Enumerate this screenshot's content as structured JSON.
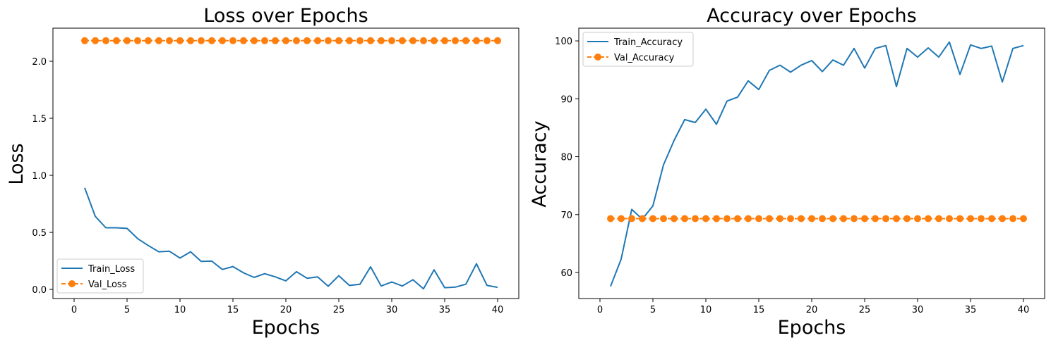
{
  "colors": {
    "train": "#1f77b4",
    "val": "#ff7f0e",
    "axis": "#000000"
  },
  "chart_data": [
    {
      "type": "line",
      "title": "Loss over Epochs",
      "xlabel": "Epochs",
      "ylabel": "Loss",
      "xlim": [
        -2,
        42
      ],
      "ylim": [
        -0.08,
        2.29
      ],
      "xticks": [
        0,
        5,
        10,
        15,
        20,
        25,
        30,
        35,
        40
      ],
      "xtick_labels": [
        "0",
        "5",
        "10",
        "15",
        "20",
        "25",
        "30",
        "35",
        "40"
      ],
      "yticks": [
        0,
        0.5,
        1,
        1.5,
        2
      ],
      "ytick_labels": [
        "0.0",
        "0.5",
        "1.0",
        "1.5",
        "2.0"
      ],
      "grid": false,
      "legend_position": "lower-left",
      "x": [
        1,
        2,
        3,
        4,
        5,
        6,
        7,
        8,
        9,
        10,
        11,
        12,
        13,
        14,
        15,
        16,
        17,
        18,
        19,
        20,
        21,
        22,
        23,
        24,
        25,
        26,
        27,
        28,
        29,
        30,
        31,
        32,
        33,
        34,
        35,
        36,
        37,
        38,
        39,
        40
      ],
      "series": [
        {
          "name": "Train_Loss",
          "style": "solid",
          "values": [
            0.89,
            0.64,
            0.54,
            0.54,
            0.535,
            0.445,
            0.385,
            0.33,
            0.335,
            0.275,
            0.33,
            0.245,
            0.248,
            0.175,
            0.2,
            0.145,
            0.105,
            0.138,
            0.11,
            0.075,
            0.155,
            0.098,
            0.11,
            0.028,
            0.12,
            0.035,
            0.045,
            0.198,
            0.03,
            0.065,
            0.03,
            0.085,
            0.005,
            0.172,
            0.015,
            0.02,
            0.045,
            0.225,
            0.035,
            0.018
          ]
        },
        {
          "name": "Val_Loss",
          "style": "dashed-circle",
          "values": [
            2.18,
            2.18,
            2.18,
            2.18,
            2.18,
            2.18,
            2.18,
            2.18,
            2.18,
            2.18,
            2.18,
            2.18,
            2.18,
            2.18,
            2.18,
            2.18,
            2.18,
            2.18,
            2.18,
            2.18,
            2.18,
            2.18,
            2.18,
            2.18,
            2.18,
            2.18,
            2.18,
            2.18,
            2.18,
            2.18,
            2.18,
            2.18,
            2.18,
            2.18,
            2.18,
            2.18,
            2.18,
            2.18,
            2.18,
            2.18
          ]
        }
      ]
    },
    {
      "type": "line",
      "title": "Accuracy over Epochs",
      "xlabel": "Epochs",
      "ylabel": "Accuracy",
      "xlim": [
        -2,
        42
      ],
      "ylim": [
        55.5,
        102.2
      ],
      "xticks": [
        0,
        5,
        10,
        15,
        20,
        25,
        30,
        35,
        40
      ],
      "xtick_labels": [
        "0",
        "5",
        "10",
        "15",
        "20",
        "25",
        "30",
        "35",
        "40"
      ],
      "yticks": [
        60,
        70,
        80,
        90,
        100
      ],
      "ytick_labels": [
        "60",
        "70",
        "80",
        "90",
        "100"
      ],
      "grid": false,
      "legend_position": "upper-left",
      "x": [
        1,
        2,
        3,
        4,
        5,
        6,
        7,
        8,
        9,
        10,
        11,
        12,
        13,
        14,
        15,
        16,
        17,
        18,
        19,
        20,
        21,
        22,
        23,
        24,
        25,
        26,
        27,
        28,
        29,
        30,
        31,
        32,
        33,
        34,
        35,
        36,
        37,
        38,
        39,
        40
      ],
      "series": [
        {
          "name": "Train_Accuracy",
          "style": "solid",
          "values": [
            57.6,
            62.3,
            70.9,
            69.2,
            71.5,
            78.6,
            82.8,
            86.4,
            85.9,
            88.2,
            85.6,
            89.6,
            90.3,
            93.1,
            91.6,
            94.9,
            95.8,
            94.6,
            95.8,
            96.6,
            94.7,
            96.7,
            95.8,
            98.7,
            95.3,
            98.7,
            99.2,
            92.1,
            98.7,
            97.2,
            98.8,
            97.2,
            99.8,
            94.2,
            99.3,
            98.7,
            99.1,
            92.9,
            98.7,
            99.2
          ]
        },
        {
          "name": "Val_Accuracy",
          "style": "dashed-circle",
          "values": [
            69.3,
            69.3,
            69.3,
            69.3,
            69.3,
            69.3,
            69.3,
            69.3,
            69.3,
            69.3,
            69.3,
            69.3,
            69.3,
            69.3,
            69.3,
            69.3,
            69.3,
            69.3,
            69.3,
            69.3,
            69.3,
            69.3,
            69.3,
            69.3,
            69.3,
            69.3,
            69.3,
            69.3,
            69.3,
            69.3,
            69.3,
            69.3,
            69.3,
            69.3,
            69.3,
            69.3,
            69.3,
            69.3,
            69.3,
            69.3
          ]
        }
      ]
    }
  ]
}
